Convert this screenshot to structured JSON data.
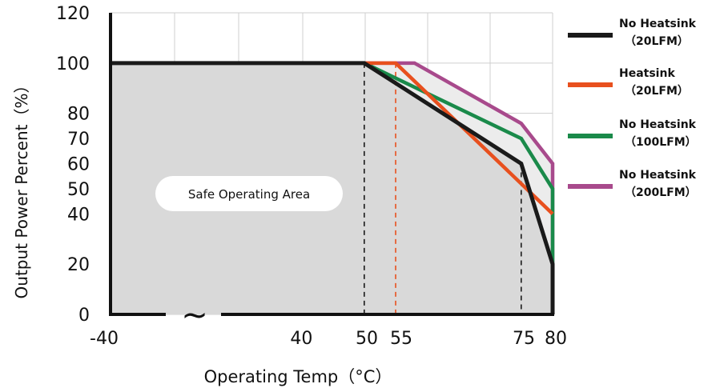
{
  "chart_data": {
    "type": "line",
    "xlabel": "Operating Temp（°C）",
    "ylabel": "Output Power Percent（%）",
    "x_ticks": [
      "-40",
      "40",
      "50",
      "55",
      "75",
      "80"
    ],
    "y_ticks": [
      "0",
      "20",
      "40",
      "50",
      "60",
      "70",
      "80",
      "100",
      "120"
    ],
    "ylim": [
      0,
      120
    ],
    "x_axis_break": "~",
    "grid": true,
    "legend_position": "right",
    "annotation": "Safe Operating Area",
    "series": [
      {
        "name": "No Heatsink",
        "condition": "（20LFM）",
        "color": "#1a1a1a",
        "points": [
          [
            -40,
            100
          ],
          [
            50,
            100
          ],
          [
            75,
            60
          ],
          [
            80,
            20
          ],
          [
            80,
            0
          ]
        ]
      },
      {
        "name": "Heatsink",
        "condition": "（20LFM）",
        "color": "#e8501e",
        "points": [
          [
            50,
            100
          ],
          [
            55,
            100
          ],
          [
            80,
            40
          ]
        ]
      },
      {
        "name": "No Heatsink",
        "condition": "（100LFM）",
        "color": "#1a8a4a",
        "points": [
          [
            50,
            100
          ],
          [
            75,
            70
          ],
          [
            80,
            50
          ],
          [
            80,
            20
          ]
        ]
      },
      {
        "name": "No Heatsink",
        "condition": "（200LFM）",
        "color": "#a84a8c",
        "points": [
          [
            50,
            100
          ],
          [
            58,
            100
          ],
          [
            75,
            76
          ],
          [
            80,
            60
          ],
          [
            80,
            20
          ]
        ]
      }
    ],
    "reference_lines": [
      {
        "x": 50,
        "color": "#1a1a1a"
      },
      {
        "x": 55,
        "color": "#e8501e"
      },
      {
        "x": 75,
        "color": "#1a1a1a"
      }
    ]
  }
}
